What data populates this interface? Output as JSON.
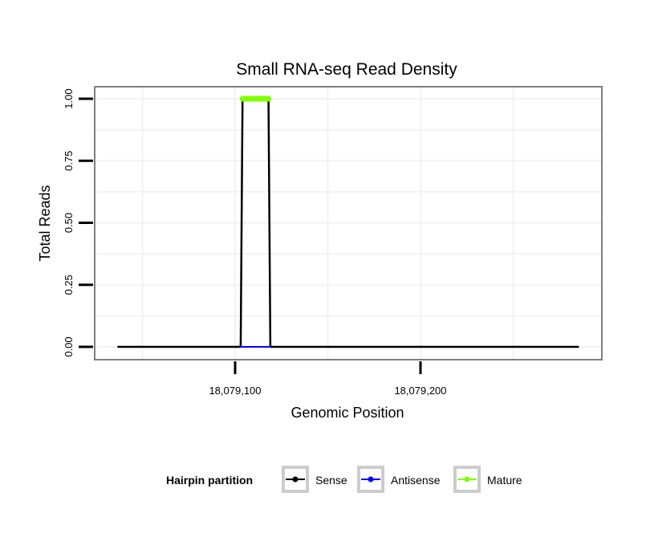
{
  "chart_data": {
    "type": "line",
    "title": "Small RNA-seq Read Density",
    "xlabel": "Genomic Position",
    "ylabel": "Total Reads",
    "xlim": [
      18079025,
      18079297
    ],
    "ylim": [
      -0.05,
      1.05
    ],
    "x_ticks": [
      18079100,
      18079200
    ],
    "x_tick_labels": [
      "18,079,100",
      "18,079,200"
    ],
    "y_ticks": [
      0,
      0.25,
      0.5,
      0.75,
      1.0
    ],
    "y_tick_labels": [
      "0.00",
      "0.25",
      "0.50",
      "0.75",
      "1.00"
    ],
    "grid": true,
    "legend": {
      "title": "Hairpin partition",
      "placement": "bottom"
    },
    "series": [
      {
        "name": "Sense",
        "color": "#000000",
        "x": [
          18079037,
          18079103,
          18079104,
          18079118,
          18079119,
          18079285
        ],
        "y": [
          0,
          0,
          1,
          1,
          0,
          0
        ]
      },
      {
        "name": "Antisense",
        "color": "#0000ff",
        "x": [
          18079103,
          18079119
        ],
        "y": [
          0,
          0
        ]
      },
      {
        "name": "Mature",
        "color": "#7fff00",
        "x": [
          18079104,
          18079118
        ],
        "y": [
          1,
          1
        ]
      }
    ]
  }
}
